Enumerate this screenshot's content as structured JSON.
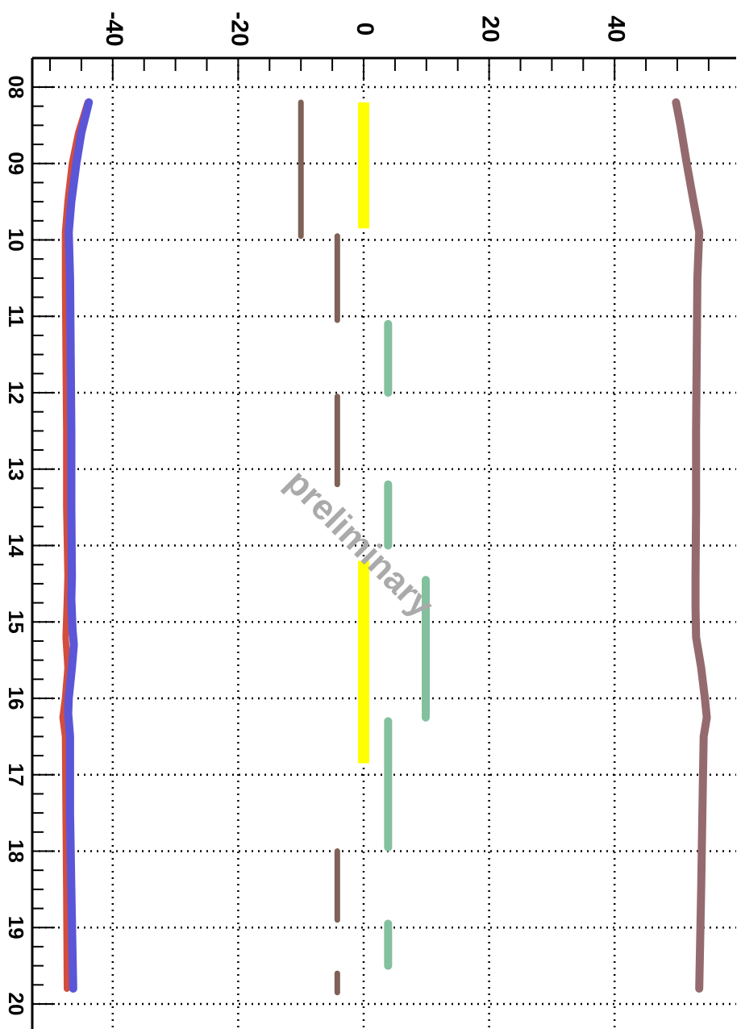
{
  "chart_data": {
    "type": "line",
    "title": "",
    "xlabel": "",
    "ylabel": "",
    "orientation": "rotated-90",
    "x_axis": {
      "ticks": [
        "08",
        "09",
        "10",
        "11",
        "12",
        "13",
        "14",
        "15",
        "16",
        "17",
        "18",
        "19",
        "20"
      ],
      "range": [
        8,
        20
      ]
    },
    "y_axis": {
      "ticks": [
        "-40",
        "-20",
        "0",
        "20",
        "40"
      ],
      "tick_values": [
        -40,
        -20,
        0,
        20,
        40
      ],
      "range": [
        -52,
        59
      ]
    },
    "grid": true,
    "watermark": "preliminary",
    "series": [
      {
        "kind": "line",
        "color": "#d24d3e",
        "width": 8,
        "points": [
          [
            8.2,
            -44.0
          ],
          [
            8.6,
            -45.5
          ],
          [
            9.0,
            -46.5
          ],
          [
            9.5,
            -47.2
          ],
          [
            9.9,
            -47.6
          ],
          [
            10.5,
            -47.6
          ],
          [
            11.5,
            -47.5
          ],
          [
            12.5,
            -47.4
          ],
          [
            13.5,
            -47.4
          ],
          [
            14.4,
            -47.2
          ],
          [
            14.7,
            -47.3
          ],
          [
            15.2,
            -47.5
          ],
          [
            15.6,
            -47.2
          ],
          [
            16.0,
            -47.6
          ],
          [
            16.25,
            -48.0
          ],
          [
            16.5,
            -47.6
          ],
          [
            17.5,
            -47.5
          ],
          [
            18.5,
            -47.4
          ],
          [
            19.8,
            -47.3
          ]
        ]
      },
      {
        "kind": "line",
        "color": "#5b55d8",
        "width": 10,
        "points": [
          [
            8.2,
            -43.8
          ],
          [
            8.6,
            -45.0
          ],
          [
            9.0,
            -45.8
          ],
          [
            9.5,
            -46.6
          ],
          [
            9.9,
            -47.0
          ],
          [
            10.5,
            -46.8
          ],
          [
            11.5,
            -46.7
          ],
          [
            12.5,
            -46.6
          ],
          [
            13.5,
            -46.6
          ],
          [
            14.4,
            -46.5
          ],
          [
            14.7,
            -46.6
          ],
          [
            15.1,
            -46.4
          ],
          [
            15.3,
            -46.2
          ],
          [
            15.6,
            -46.5
          ],
          [
            16.0,
            -47.0
          ],
          [
            16.2,
            -47.1
          ],
          [
            16.5,
            -46.8
          ],
          [
            17.5,
            -46.8
          ],
          [
            18.5,
            -46.6
          ],
          [
            19.8,
            -46.3
          ]
        ]
      },
      {
        "kind": "line",
        "color": "#956a6e",
        "width": 10,
        "points": [
          [
            8.2,
            49.8
          ],
          [
            8.5,
            50.5
          ],
          [
            9.0,
            51.5
          ],
          [
            9.5,
            52.6
          ],
          [
            9.9,
            53.5
          ],
          [
            10.5,
            53.2
          ],
          [
            11.5,
            53.1
          ],
          [
            12.5,
            53.0
          ],
          [
            13.5,
            53.0
          ],
          [
            14.4,
            52.9
          ],
          [
            14.8,
            52.9
          ],
          [
            15.2,
            53.0
          ],
          [
            15.6,
            53.8
          ],
          [
            16.0,
            54.4
          ],
          [
            16.25,
            54.7
          ],
          [
            16.5,
            54.2
          ],
          [
            17.5,
            54.0
          ],
          [
            18.5,
            53.8
          ],
          [
            19.8,
            53.5
          ]
        ]
      },
      {
        "kind": "segments",
        "color": "#7f6256",
        "width": 7,
        "segments": [
          [
            8.2,
            9.95,
            -10.0
          ],
          [
            9.95,
            11.05,
            -4.2
          ],
          [
            12.05,
            13.2,
            -4.2
          ],
          [
            18.0,
            18.9,
            -4.2
          ],
          [
            19.6,
            19.85,
            -4.2
          ]
        ]
      },
      {
        "kind": "segments",
        "color": "#ffff00",
        "width": 14,
        "segments": [
          [
            8.2,
            9.85,
            0.0
          ],
          [
            14.2,
            16.85,
            0.0
          ]
        ]
      },
      {
        "kind": "segments",
        "color": "#82c09e",
        "width": 10,
        "segments": [
          [
            11.1,
            12.0,
            3.9
          ],
          [
            13.2,
            14.0,
            3.9
          ],
          [
            14.45,
            16.25,
            9.9
          ],
          [
            16.3,
            17.95,
            3.9
          ],
          [
            18.95,
            19.5,
            3.9
          ]
        ]
      }
    ]
  }
}
